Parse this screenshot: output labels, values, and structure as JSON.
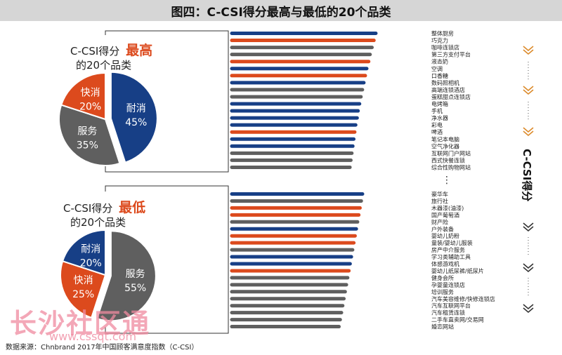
{
  "title": "图四：C-CSI得分最高与最低的20个品类",
  "footer": "数据来源：Chnbrand 2017年中国顾客满意度指数（C-CSI）",
  "watermark": {
    "text": "长沙社区通",
    "url": "www.cssqt.com"
  },
  "colors": {
    "navy": "#173f86",
    "orange": "#dc4a1d",
    "gray": "#5f5f5f",
    "arrow_orange": "#dc8a2a",
    "arrow_dark": "#333333"
  },
  "side_label": "C-CSI得分",
  "ellipsis": "⋮",
  "chart_data": [
    {
      "type": "pie",
      "title_prefix": "C-CSI得分",
      "title_highlight": "最高",
      "title_suffix": "的20个品类",
      "slices": [
        {
          "name": "耐消",
          "value": 45,
          "label": "45%",
          "color": "#173f86"
        },
        {
          "name": "服务",
          "value": 35,
          "label": "35%",
          "color": "#5f5f5f"
        },
        {
          "name": "快消",
          "value": 20,
          "label": "20%",
          "color": "#dc4a1d"
        }
      ]
    },
    {
      "type": "bar",
      "orientation": "horizontal",
      "categories": [
        "整体厨房",
        "巧克力",
        "咖啡连锁店",
        "第三方支付平台",
        "液态奶",
        "空调",
        "口香糖",
        "数码照相机",
        "高端连锁酒店",
        "蛋糕甜点连锁店",
        "电烤箱",
        "手机",
        "净水器",
        "彩电",
        "啤酒",
        "笔记本电脑",
        "空气净化器",
        "互联网门户网站",
        "西式快餐连锁",
        "综合性购物网站"
      ],
      "sectors": [
        "耐消",
        "快消",
        "服务",
        "服务",
        "快消",
        "耐消",
        "快消",
        "耐消",
        "服务",
        "服务",
        "耐消",
        "耐消",
        "耐消",
        "耐消",
        "快消",
        "耐消",
        "耐消",
        "服务",
        "服务",
        "服务"
      ],
      "values": [
        100,
        99.6,
        99.2,
        98.8,
        98.5,
        98.1,
        97.8,
        97.5,
        97.2,
        96.9,
        96.6,
        96.3,
        96.1,
        95.8,
        95.6,
        95.4,
        95.2,
        95.0,
        94.8,
        94.6
      ]
    },
    {
      "type": "pie",
      "title_prefix": "C-CSI得分",
      "title_highlight": "最低",
      "title_suffix": "的20个品类",
      "slices": [
        {
          "name": "服务",
          "value": 55,
          "label": "55%",
          "color": "#5f5f5f"
        },
        {
          "name": "快消",
          "value": 25,
          "label": "25%",
          "color": "#dc4a1d"
        },
        {
          "name": "耐消",
          "value": 20,
          "label": "20%",
          "color": "#173f86"
        }
      ]
    },
    {
      "type": "bar",
      "orientation": "horizontal",
      "categories": [
        "豪华车",
        "旅行社",
        "木器漆(油漆)",
        "国产葡萄酒",
        "财产险",
        "户外装备",
        "婴幼儿奶粉",
        "童装/婴幼儿服装",
        "房产中介服务",
        "学习类辅助工具",
        "体感游戏机",
        "婴幼儿纸尿裤/纸尿片",
        "健身会所",
        "孕婴童连锁店",
        "培训服务",
        "汽车美容维修/快修连锁店",
        "汽车互联网平台",
        "汽车租赁连锁",
        "二手车直卖网/交易网",
        "婚恋网站"
      ],
      "sectors": [
        "耐消",
        "服务",
        "快消",
        "快消",
        "服务",
        "耐消",
        "快消",
        "快消",
        "服务",
        "耐消",
        "耐消",
        "快消",
        "服务",
        "服务",
        "服务",
        "服务",
        "服务",
        "服务",
        "服务",
        "服务"
      ],
      "values": [
        77.1,
        76.8,
        76.5,
        76.2,
        75.9,
        75.6,
        75.3,
        75.0,
        74.7,
        74.4,
        74.1,
        73.8,
        73.5,
        73.2,
        72.9,
        72.6,
        72.3,
        72.0,
        71.7,
        71.4
      ]
    }
  ]
}
